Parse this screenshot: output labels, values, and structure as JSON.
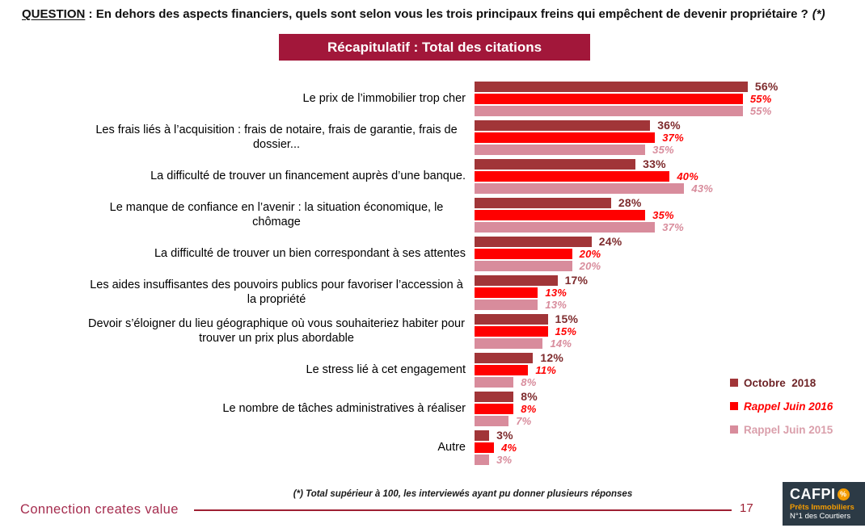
{
  "header": {
    "question_label": "QUESTION",
    "question_separator": " : ",
    "question_text": "En dehors des aspects financiers, quels sont selon vous les trois principaux freins qui empêchent de devenir propriétaire ?",
    "question_note": "(*)"
  },
  "banner": {
    "title": "Récapitulatif : Total des citations",
    "background": "#A2173A",
    "text_color": "#FFFFFF"
  },
  "chart_data": {
    "type": "bar",
    "orientation": "horizontal",
    "title": "Récapitulatif : Total des citations",
    "value_suffix": "%",
    "xlim": [
      0,
      60
    ],
    "grid": false,
    "legend_position": "right",
    "categories": [
      "Le prix de l’immobilier trop cher",
      "Les frais liés à l’acquisition : frais de notaire, frais de garantie, frais de dossier...",
      "La difficulté de trouver un financement auprès d’une banque.",
      "Le manque de confiance en l’avenir : la situation économique, le chômage",
      "La difficulté de trouver un bien correspondant à ses attentes",
      "Les aides insuffisantes des pouvoirs publics pour favoriser l’accession à la propriété",
      "Devoir s’éloigner du lieu géographique où vous souhaiteriez habiter pour trouver un prix plus abordable",
      "Le stress lié à cet engagement",
      "Le nombre de tâches administratives à réaliser",
      "Autre"
    ],
    "series": [
      {
        "name": "Octobre  2018",
        "color": "#A13538",
        "label_color": "#7E2B2D",
        "label_italic": false,
        "legend_text_color": "#6E2427",
        "legend_italic": false,
        "values": [
          56,
          36,
          33,
          28,
          24,
          17,
          15,
          12,
          8,
          3
        ]
      },
      {
        "name": "Rappel Juin 2016",
        "color": "#FF0000",
        "label_color": "#FF0000",
        "label_italic": true,
        "legend_text_color": "#FF0000",
        "legend_italic": true,
        "values": [
          55,
          37,
          40,
          35,
          20,
          13,
          15,
          11,
          8,
          4
        ]
      },
      {
        "name": "Rappel Juin 2015",
        "color": "#D88C9C",
        "label_color": "#D88C9C",
        "label_italic": true,
        "legend_text_color": "#DA9FAB",
        "legend_italic": false,
        "values": [
          55,
          35,
          43,
          37,
          20,
          13,
          14,
          8,
          7,
          3
        ]
      }
    ]
  },
  "footer": {
    "tagline": "Connection creates value",
    "footnote": "(*) Total supérieur à 100, les interviewés ayant pu donner plusieurs réponses",
    "page_number": "17",
    "logo": {
      "brand": "CAFPI",
      "badge": "%",
      "line1": "Prêts Immobiliers",
      "line2": "N°1 des Courtiers"
    }
  }
}
